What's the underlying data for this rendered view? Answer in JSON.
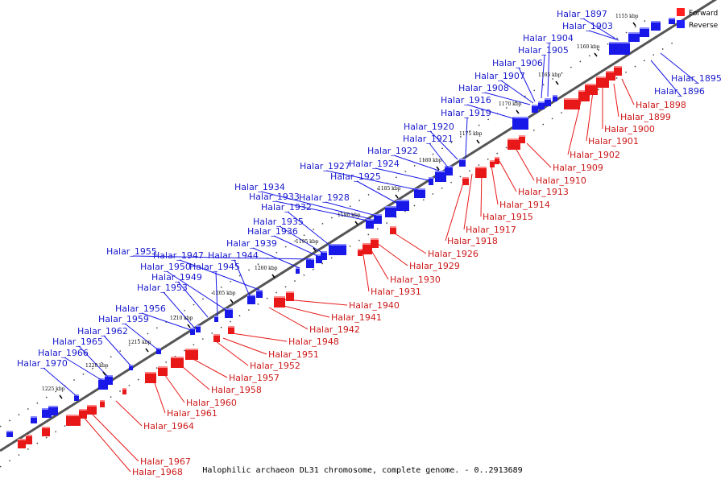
{
  "caption": "Halophilic archaeon DL31 chromosome, complete genome. - 0..2913689",
  "legend": {
    "forward_label": "Forward",
    "reverse_label": "Reverse",
    "forward_color": "#ff1f1f",
    "reverse_color": "#1f1fff"
  },
  "colors": {
    "forward": "#e81818",
    "forward_light": "#ff8888",
    "reverse": "#1818e8",
    "reverse_light": "#8888ff",
    "axis": "#555555",
    "forward_label": "#cc1a1a",
    "reverse_label": "#1a1acc"
  },
  "ticks": [
    "1155 kbp",
    "1160 kbp",
    "1165 kbp",
    "1170 kbp",
    "1175 kbp",
    "1180 kbp",
    "1185 kbp",
    "1190 kbp",
    "1195 kbp",
    "1200 kbp",
    "1205 kbp",
    "1210 kbp",
    "1215 kbp",
    "1220 kbp",
    "1225 kbp"
  ],
  "reverse_genes": [
    "Halar_1895",
    "Halar_1896",
    "Halar_1897",
    "Halar_1903",
    "Halar_1904",
    "Halar_1905",
    "Halar_1906",
    "Halar_1907",
    "Halar_1908",
    "Halar_1916",
    "Halar_1919",
    "Halar_1920",
    "Halar_1921",
    "Halar_1922",
    "Halar_1924",
    "Halar_1927",
    "Halar_1925",
    "Halar_1928",
    "Halar_1934",
    "Halar_1933",
    "Halar_1932",
    "Halar_1935",
    "Halar_1936",
    "Halar_1939",
    "Halar_1955",
    "Halar_1947",
    "Halar_1944",
    "Halar_1950",
    "Halar_1945",
    "Halar_1949",
    "Halar_1953",
    "Halar_1956",
    "Halar_1959",
    "Halar_1962",
    "Halar_1965",
    "Halar_1966",
    "Halar_1970"
  ],
  "forward_genes": [
    "Halar_1898",
    "Halar_1899",
    "Halar_1900",
    "Halar_1901",
    "Halar_1902",
    "Halar_1909",
    "Halar_1910",
    "Halar_1913",
    "Halar_1914",
    "Halar_1915",
    "Halar_1917",
    "Halar_1918",
    "Halar_1926",
    "Halar_1929",
    "Halar_1930",
    "Halar_1931",
    "Halar_1940",
    "Halar_1941",
    "Halar_1942",
    "Halar_1948",
    "Halar_1951",
    "Halar_1952",
    "Halar_1957",
    "Halar_1958",
    "Halar_1960",
    "Halar_1961",
    "Halar_1964",
    "Halar_1967",
    "Halar_1968"
  ]
}
